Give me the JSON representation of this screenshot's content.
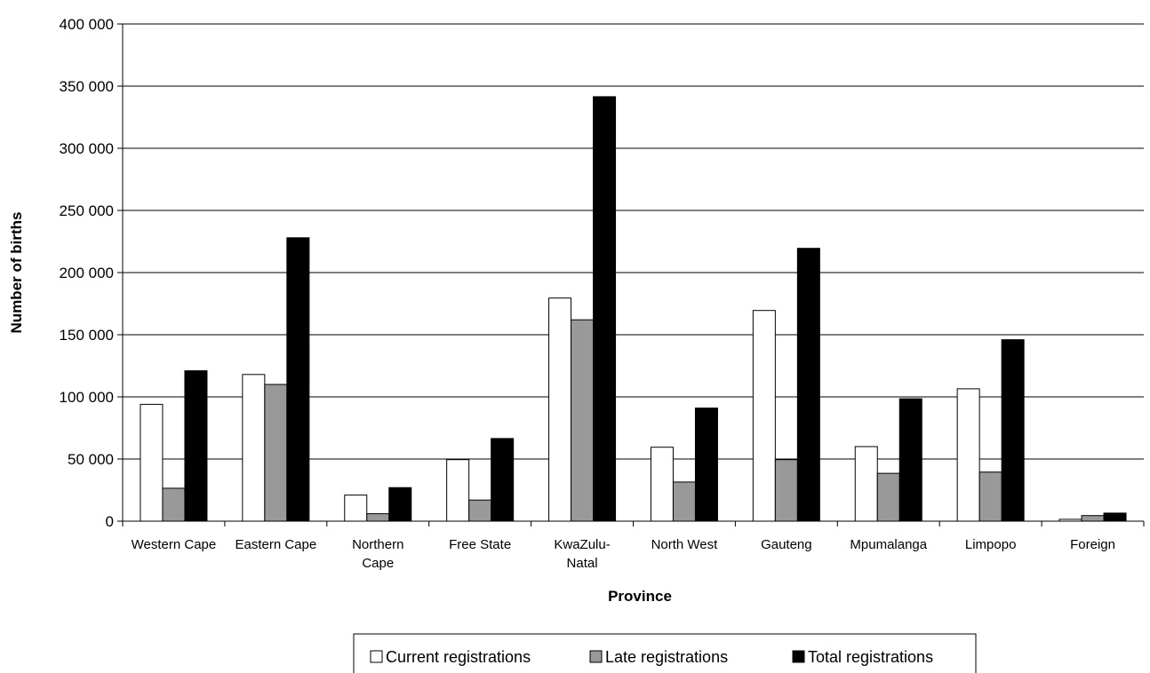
{
  "chart_data": {
    "type": "bar",
    "title": "",
    "xlabel": "Province",
    "ylabel": "Number of births",
    "ylim": [
      0,
      400000
    ],
    "yticks": [
      {
        "value": 0,
        "label": "0"
      },
      {
        "value": 50000,
        "label": "50 000"
      },
      {
        "value": 100000,
        "label": "100 000"
      },
      {
        "value": 150000,
        "label": "150 000"
      },
      {
        "value": 200000,
        "label": "200 000"
      },
      {
        "value": 250000,
        "label": "250 000"
      },
      {
        "value": 300000,
        "label": "300 000"
      },
      {
        "value": 350000,
        "label": "350 000"
      },
      {
        "value": 400000,
        "label": "400 000"
      }
    ],
    "categories": [
      [
        "Western Cape"
      ],
      [
        "Eastern Cape"
      ],
      [
        "Northern",
        "Cape"
      ],
      [
        "Free State"
      ],
      [
        "KwaZulu-",
        "Natal"
      ],
      [
        "North West"
      ],
      [
        "Gauteng"
      ],
      [
        "Mpumalanga"
      ],
      [
        "Limpopo"
      ],
      [
        "Foreign"
      ]
    ],
    "series": [
      {
        "name": "Current registrations",
        "color": "#ffffff",
        "values": [
          94000,
          118000,
          21000,
          49500,
          179500,
          59500,
          169500,
          60000,
          106500,
          1500
        ]
      },
      {
        "name": "Late registrations",
        "color": "#999999",
        "values": [
          26500,
          110000,
          6000,
          17000,
          162000,
          31500,
          49500,
          38500,
          39500,
          4500
        ]
      },
      {
        "name": "Total registrations",
        "color": "#000000",
        "values": [
          121000,
          228000,
          27000,
          66500,
          341500,
          91000,
          219500,
          98500,
          146000,
          6500
        ]
      }
    ],
    "grid": true,
    "legend_position": "bottom"
  }
}
